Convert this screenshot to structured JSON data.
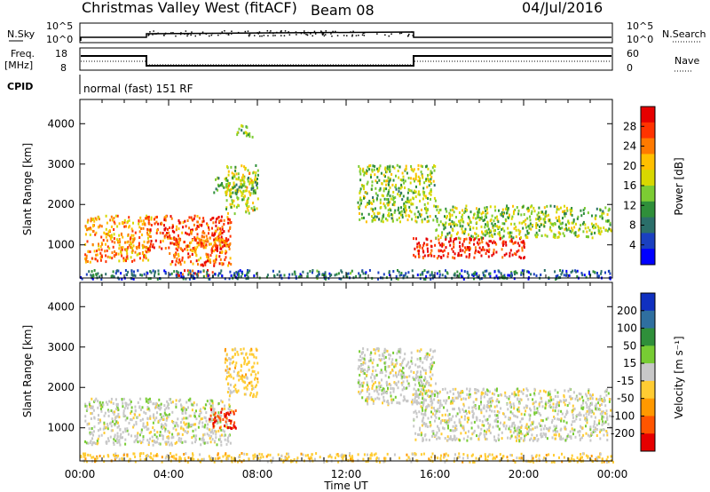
{
  "header": {
    "title": "Christmas Valley West (fitACF)",
    "beam": "Beam 08",
    "date": "04/Jul/2016"
  },
  "top_panels": {
    "nsky_label": "N.Sky",
    "nsearch_label": "N.Search",
    "left_ticks": [
      "10^5",
      "10^0"
    ],
    "right_ticks": [
      "10^5",
      "10^0"
    ],
    "freq_label_1": "Freq.",
    "freq_label_2": "[MHz]",
    "freq_ticks": [
      "18",
      "8"
    ],
    "nave_label": "Nave",
    "nave_ticks": [
      "60",
      "0"
    ],
    "cpid_label": "CPID",
    "cpid_text": "normal (fast) 151 RF"
  },
  "colorbars": {
    "power": {
      "label": "Power [dB]",
      "ticks": [
        "28",
        "24",
        "20",
        "16",
        "12",
        "8",
        "4"
      ],
      "colors": [
        "#e60000",
        "#ff3300",
        "#ff7a00",
        "#ffc000",
        "#d8d800",
        "#7ccc33",
        "#2f8f3a",
        "#2b6f6a",
        "#1a40c0",
        "#0000ff"
      ]
    },
    "velocity": {
      "label": "Velocity [m s⁻¹]",
      "ticks": [
        "200",
        "100",
        "50",
        "15",
        "-15",
        "-50",
        "-100",
        "-200"
      ],
      "colors": [
        "#1030c0",
        "#2f6f9f",
        "#2f8f3a",
        "#77cc33",
        "#c8c8c8",
        "#ffcc33",
        "#ff9900",
        "#ff5500",
        "#e60000"
      ]
    }
  },
  "chart_data": [
    {
      "type": "heatmap",
      "title": "",
      "ylabel": "Slant Range [km]",
      "colorbar_label": "Power [dB]",
      "yticks": [
        "1000",
        "2000",
        "3000",
        "4000"
      ],
      "xticks": [
        "00:00",
        "04:00",
        "08:00",
        "12:00",
        "16:00",
        "20:00",
        "00:00"
      ],
      "xlim": [
        0,
        24
      ],
      "ylim": [
        180,
        4600
      ],
      "xunit": "hours UT",
      "yunit": "km",
      "regions": [
        {
          "t": [
            0.2,
            3.2
          ],
          "r": [
            600,
            1750
          ],
          "value": 22
        },
        {
          "t": [
            3.0,
            6.8
          ],
          "r": [
            900,
            1750
          ],
          "value": 26
        },
        {
          "t": [
            4.0,
            6.8
          ],
          "r": [
            500,
            1200
          ],
          "value": 24
        },
        {
          "t": [
            6.5,
            8.0
          ],
          "r": [
            1800,
            3000
          ],
          "value": 16
        },
        {
          "t": [
            7.0,
            7.8
          ],
          "r": [
            3700,
            4000
          ],
          "value": 14
        },
        {
          "t": [
            6.0,
            8.0
          ],
          "r": [
            2300,
            2700
          ],
          "value": 12
        },
        {
          "t": [
            12.5,
            16.0
          ],
          "r": [
            1600,
            3000
          ],
          "value": 14
        },
        {
          "t": [
            15.0,
            20.0
          ],
          "r": [
            700,
            1200
          ],
          "value": 28
        },
        {
          "t": [
            16.0,
            23.9
          ],
          "r": [
            1200,
            2000
          ],
          "value": 14
        },
        {
          "t": [
            4.3,
            6.0
          ],
          "r": [
            250,
            400
          ],
          "value": 26
        },
        {
          "t": [
            0,
            24
          ],
          "r": [
            180,
            400
          ],
          "value": 6
        }
      ]
    },
    {
      "type": "heatmap",
      "title": "",
      "ylabel": "Slant Range [km]",
      "xlabel": "Time UT",
      "colorbar_label": "Velocity [m s⁻¹]",
      "yticks": [
        "1000",
        "2000",
        "3000",
        "4000"
      ],
      "xticks": [
        "00:00",
        "04:00",
        "08:00",
        "12:00",
        "16:00",
        "20:00",
        "00:00"
      ],
      "xlim": [
        0,
        24
      ],
      "ylim": [
        180,
        4600
      ],
      "xunit": "hours UT",
      "yunit": "km",
      "regions": [
        {
          "t": [
            0.2,
            6.8
          ],
          "r": [
            600,
            1750
          ],
          "value": 0
        },
        {
          "t": [
            6.5,
            8.0
          ],
          "r": [
            1800,
            3000
          ],
          "value": -20
        },
        {
          "t": [
            5.8,
            7.0
          ],
          "r": [
            1000,
            1500
          ],
          "value": -150
        },
        {
          "t": [
            12.5,
            16.0
          ],
          "r": [
            1600,
            3000
          ],
          "value": 0
        },
        {
          "t": [
            15.0,
            23.9
          ],
          "r": [
            700,
            2000
          ],
          "value": 0
        },
        {
          "t": [
            0,
            24
          ],
          "r": [
            180,
            400
          ],
          "value": -20
        }
      ]
    }
  ],
  "xlabel": "Time UT"
}
